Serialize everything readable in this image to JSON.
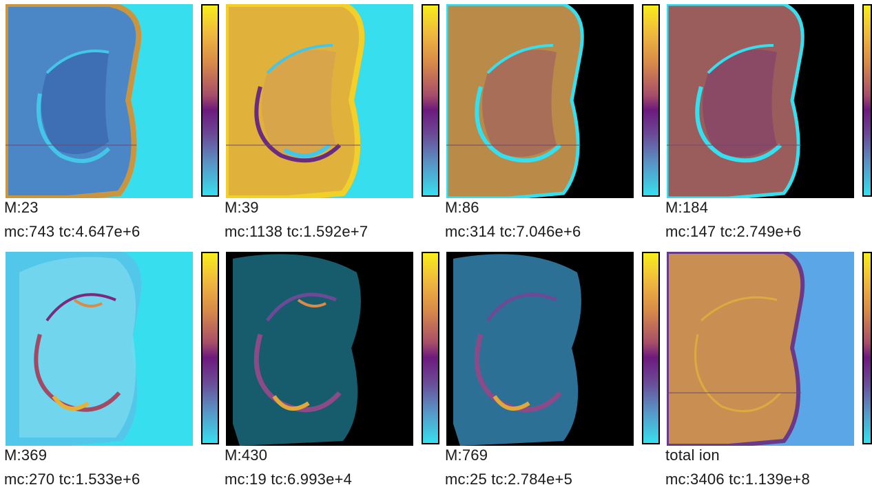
{
  "panels": [
    {
      "mass_label": "M:23",
      "stats_label": "mc:743 tc:4.647e+6",
      "map": "low-intensity",
      "background": "#37dfee"
    },
    {
      "mass_label": "M:39",
      "stats_label": "mc:1138 tc:1.592e+7",
      "map": "high-intensity",
      "background": "#37dfee"
    },
    {
      "mass_label": "M:86",
      "stats_label": "mc:314 tc:7.046e+6",
      "map": "speckled",
      "background": "#000000"
    },
    {
      "mass_label": "M:184",
      "stats_label": "mc:147 tc:2.749e+6",
      "map": "speckled",
      "background": "#000000"
    },
    {
      "mass_label": "M:369",
      "stats_label": "mc:270 tc:1.533e+6",
      "map": "sparse-ring",
      "background": "#37dfee"
    },
    {
      "mass_label": "M:430",
      "stats_label": "mc:19 tc:6.993e+4",
      "map": "sparse-ring",
      "background": "#000000"
    },
    {
      "mass_label": "M:769",
      "stats_label": "mc:25 tc:2.784e+5",
      "map": "sparse-ring",
      "background": "#000000"
    },
    {
      "mass_label": "total ion",
      "stats_label": "mc:3406 tc:1.139e+8",
      "map": "total-ion",
      "background": "#5aa6e6"
    }
  ],
  "colormap": [
    "#f7ee1c",
    "#d98b48",
    "#6d1a7d",
    "#5a8fc2",
    "#37dfee"
  ]
}
